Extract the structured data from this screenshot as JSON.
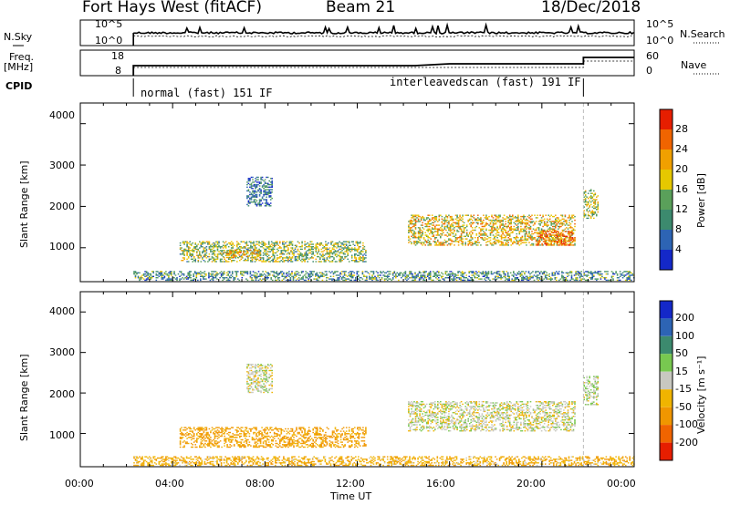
{
  "header": {
    "radar": "Fort Hays West (fitACF)",
    "beam": "Beam 21",
    "date": "18/Dec/2018"
  },
  "top_panels": {
    "sky_label": "N.Sky",
    "sky_ticks": [
      "10^5",
      "10^0"
    ],
    "search_label": "N.Search",
    "sky_right_ticks": [
      "10^5",
      "10^0"
    ],
    "freq_label_1": "Freq.",
    "freq_label_2": "[MHz]",
    "freq_ticks": [
      "18",
      "8"
    ],
    "nave_ticks": [
      "60",
      "0"
    ],
    "nave_label": "Nave",
    "cpid_label": "CPID",
    "cpid_program_1": "normal (fast) 151 IF",
    "cpid_program_2": "interleavedscan (fast) 191 IF"
  },
  "power_panel": {
    "ylabel": "Slant Range [km]",
    "yticks": [
      "4000",
      "3000",
      "2000",
      "1000"
    ],
    "colorbar_label": "Power [dB]",
    "colorbar_ticks": [
      "28",
      "24",
      "20",
      "16",
      "12",
      "8",
      "4"
    ]
  },
  "velocity_panel": {
    "ylabel": "Slant Range [km]",
    "yticks": [
      "4000",
      "3000",
      "2000",
      "1000"
    ],
    "colorbar_label": "Velocity [m s⁻¹]",
    "colorbar_ticks": [
      "200",
      "100",
      "50",
      "15",
      "-15",
      "-50",
      "-100",
      "-200"
    ]
  },
  "xaxis": {
    "ticks": [
      "00:00",
      "04:00",
      "08:00",
      "12:00",
      "16:00",
      "20:00",
      "00:00"
    ],
    "label": "Time UT"
  },
  "colors": {
    "power_scale": [
      "#1428c8",
      "#2d64b4",
      "#3c8a6e",
      "#5aa05a",
      "#e6c800",
      "#f0a000",
      "#f06400",
      "#e61e00"
    ],
    "velocity_scale": [
      "#e61e00",
      "#f06400",
      "#f09600",
      "#f0b400",
      "#c8c8c0",
      "#78c850",
      "#3c8a6e",
      "#2d64b4",
      "#1428c8"
    ]
  },
  "chart_data": [
    {
      "type": "heatmap",
      "title": "Power",
      "xlabel": "Time UT",
      "ylabel": "Slant Range [km]",
      "xlim_hours": [
        0,
        24
      ],
      "ylim_km": [
        180,
        4500
      ],
      "zlabel": "Power [dB]",
      "zlim": [
        0,
        30
      ],
      "echo_regions": [
        {
          "t_start": 4.3,
          "t_end": 12.4,
          "range_start": 650,
          "range_end": 1150,
          "power": 14
        },
        {
          "t_start": 6.2,
          "t_end": 7.8,
          "range_start": 750,
          "range_end": 950,
          "power": 20
        },
        {
          "t_start": 7.2,
          "t_end": 8.3,
          "range_start": 2000,
          "range_end": 2700,
          "power": 8
        },
        {
          "t_start": 14.2,
          "t_end": 21.4,
          "range_start": 1050,
          "range_end": 1800,
          "power": 18
        },
        {
          "t_start": 19.8,
          "t_end": 21.3,
          "range_start": 1050,
          "range_end": 1400,
          "power": 24
        },
        {
          "t_start": 21.8,
          "t_end": 22.4,
          "range_start": 1700,
          "range_end": 2400,
          "power": 16
        },
        {
          "t_start": 2.3,
          "t_end": 24,
          "range_start": 200,
          "range_end": 420,
          "power": 10
        }
      ]
    },
    {
      "type": "heatmap",
      "title": "Velocity",
      "xlabel": "Time UT",
      "ylabel": "Slant Range [km]",
      "xlim_hours": [
        0,
        24
      ],
      "ylim_km": [
        180,
        4500
      ],
      "zlabel": "Velocity [m s⁻¹]",
      "zlim": [
        -250,
        250
      ],
      "echo_regions": [
        {
          "t_start": 4.3,
          "t_end": 12.4,
          "range_start": 650,
          "range_end": 1150,
          "velocity": -60
        },
        {
          "t_start": 7.2,
          "t_end": 8.3,
          "range_start": 2000,
          "range_end": 2700,
          "velocity": 0
        },
        {
          "t_start": 14.2,
          "t_end": 21.4,
          "range_start": 1050,
          "range_end": 1800,
          "velocity": 0
        },
        {
          "t_start": 21.8,
          "t_end": 22.4,
          "range_start": 1700,
          "range_end": 2400,
          "velocity": 10
        },
        {
          "t_start": 2.3,
          "t_end": 24,
          "range_start": 200,
          "range_end": 420,
          "velocity": -40
        }
      ]
    }
  ]
}
